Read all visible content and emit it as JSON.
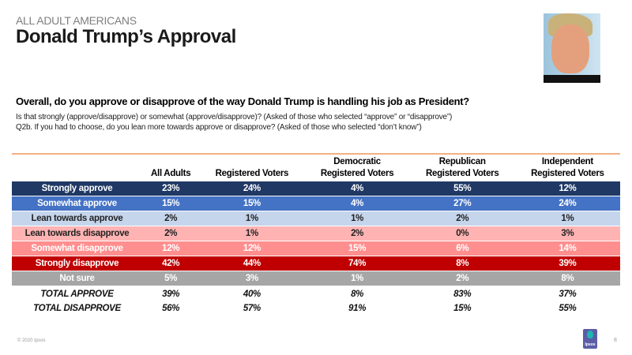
{
  "header": {
    "kicker": "ALL ADULT AMERICANS",
    "title": "Donald Trump’s Approval"
  },
  "question": {
    "main": "Overall, do you approve or disapprove of the way Donald Trump is handling his job as President?",
    "sub1": "Is that strongly (approve/disapprove)  or somewhat (approve/disapprove)?  (Asked of those who selected “approve” or “disapprove”)",
    "sub2": "Q2b. If you had to choose, do you lean more towards approve or disapprove? (Asked of those who selected “don’t know”)"
  },
  "table": {
    "columns": [
      "All Adults",
      "Registered Voters",
      "Democratic Registered Voters",
      "Republican Registered Voters",
      "Independent Registered Voters"
    ],
    "column_lines": [
      [
        "All Adults"
      ],
      [
        "Registered Voters"
      ],
      [
        "Democratic",
        "Registered Voters"
      ],
      [
        "Republican",
        "Registered Voters"
      ],
      [
        "Independent",
        "Registered Voters"
      ]
    ],
    "rows": [
      {
        "label": "Strongly approve",
        "values": [
          "23%",
          "24%",
          "4%",
          "55%",
          "12%"
        ],
        "color": "#1f3864"
      },
      {
        "label": "Somewhat approve",
        "values": [
          "15%",
          "15%",
          "4%",
          "27%",
          "24%"
        ],
        "color": "#4472c4"
      },
      {
        "label": "Lean towards approve",
        "values": [
          "2%",
          "1%",
          "1%",
          "2%",
          "1%"
        ],
        "color": "#c5d5ec"
      },
      {
        "label": "Lean towards disapprove",
        "values": [
          "2%",
          "1%",
          "2%",
          "0%",
          "3%"
        ],
        "color": "#ffb3b3"
      },
      {
        "label": "Somewhat disapprove",
        "values": [
          "12%",
          "12%",
          "15%",
          "6%",
          "14%"
        ],
        "color": "#ff8f8f"
      },
      {
        "label": "Strongly disapprove",
        "values": [
          "42%",
          "44%",
          "74%",
          "8%",
          "39%"
        ],
        "color": "#c00000"
      },
      {
        "label": "Not sure",
        "values": [
          "5%",
          "3%",
          "1%",
          "2%",
          "8%"
        ],
        "color": "#a6a6a6"
      }
    ],
    "totals": [
      {
        "label": "TOTAL APPROVE",
        "values": [
          "39%",
          "40%",
          "8%",
          "83%",
          "37%"
        ]
      },
      {
        "label": "TOTAL DISAPPROVE",
        "values": [
          "56%",
          "57%",
          "91%",
          "15%",
          "55%"
        ]
      }
    ]
  },
  "footer": {
    "copyright": "© 2020 Ipsos",
    "page_number": "8",
    "logo_text": "Ipsos"
  }
}
